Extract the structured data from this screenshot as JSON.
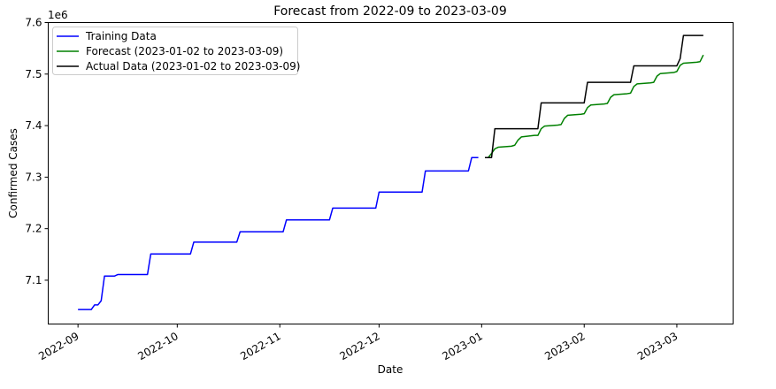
{
  "chart_data": {
    "type": "line",
    "title": "Forecast from 2022-09 to 2023-03-09",
    "xlabel": "Date",
    "ylabel": "Confirmed Cases",
    "y_offset_label": "1e6",
    "ylim": [
      7.015,
      7.6
    ],
    "xlim": [
      "2022-08-23",
      "2023-03-18"
    ],
    "yticks": [
      7.1,
      7.2,
      7.3,
      7.4,
      7.5,
      7.6
    ],
    "yticklabels": [
      "7.1",
      "7.2",
      "7.3",
      "7.4",
      "7.5",
      "7.6"
    ],
    "xticks": [
      "2022-09-01",
      "2022-10-01",
      "2022-11-01",
      "2022-12-01",
      "2023-01-01",
      "2023-02-01",
      "2023-03-01"
    ],
    "xticklabels": [
      "2022-09",
      "2022-10",
      "2022-11",
      "2022-12",
      "2023-01",
      "2023-02",
      "2023-03"
    ],
    "grid": false,
    "legend_position": "top-left",
    "series": [
      {
        "name": "Training Data",
        "color": "#0000ff",
        "x": [
          "2022-09-01",
          "2022-09-05",
          "2022-09-06",
          "2022-09-07",
          "2022-09-08",
          "2022-09-09",
          "2022-09-12",
          "2022-09-13",
          "2022-09-14",
          "2022-09-22",
          "2022-09-23",
          "2022-10-05",
          "2022-10-06",
          "2022-10-19",
          "2022-10-20",
          "2022-11-02",
          "2022-11-03",
          "2022-11-16",
          "2022-11-17",
          "2022-11-30",
          "2022-12-01",
          "2022-12-14",
          "2022-12-15",
          "2022-12-28",
          "2022-12-29",
          "2022-12-31"
        ],
        "y": [
          7.043,
          7.043,
          7.052,
          7.052,
          7.06,
          7.108,
          7.108,
          7.111,
          7.111,
          7.111,
          7.151,
          7.151,
          7.174,
          7.174,
          7.194,
          7.194,
          7.217,
          7.217,
          7.24,
          7.24,
          7.271,
          7.271,
          7.312,
          7.312,
          7.338,
          7.338
        ]
      },
      {
        "name": "Forecast (2023-01-02 to 2023-03-09)",
        "color": "#008000",
        "x": [
          "2023-01-02",
          "2023-01-03",
          "2023-01-04",
          "2023-01-05",
          "2023-01-06",
          "2023-01-10",
          "2023-01-11",
          "2023-01-12",
          "2023-01-13",
          "2023-01-17",
          "2023-01-18",
          "2023-01-19",
          "2023-01-20",
          "2023-01-24",
          "2023-01-25",
          "2023-01-26",
          "2023-01-27",
          "2023-01-31",
          "2023-02-01",
          "2023-02-02",
          "2023-02-03",
          "2023-02-07",
          "2023-02-08",
          "2023-02-09",
          "2023-02-10",
          "2023-02-14",
          "2023-02-15",
          "2023-02-16",
          "2023-02-17",
          "2023-02-21",
          "2023-02-22",
          "2023-02-23",
          "2023-02-24",
          "2023-02-28",
          "2023-03-01",
          "2023-03-02",
          "2023-03-03",
          "2023-03-07",
          "2023-03-08",
          "2023-03-09"
        ],
        "y": [
          7.338,
          7.338,
          7.346,
          7.355,
          7.358,
          7.36,
          7.362,
          7.372,
          7.378,
          7.381,
          7.381,
          7.394,
          7.399,
          7.401,
          7.402,
          7.414,
          7.42,
          7.422,
          7.423,
          7.435,
          7.44,
          7.442,
          7.443,
          7.455,
          7.46,
          7.462,
          7.463,
          7.476,
          7.481,
          7.483,
          7.484,
          7.496,
          7.501,
          7.503,
          7.505,
          7.517,
          7.521,
          7.523,
          7.524,
          7.537
        ]
      },
      {
        "name": "Actual Data (2023-01-02 to 2023-03-09)",
        "color": "#000000",
        "x": [
          "2023-01-02",
          "2023-01-04",
          "2023-01-05",
          "2023-01-18",
          "2023-01-19",
          "2023-02-01",
          "2023-02-02",
          "2023-02-15",
          "2023-02-16",
          "2023-03-01",
          "2023-03-02",
          "2023-03-03",
          "2023-03-09"
        ],
        "y": [
          7.338,
          7.338,
          7.394,
          7.394,
          7.444,
          7.444,
          7.484,
          7.484,
          7.516,
          7.516,
          7.53,
          7.575,
          7.575
        ]
      }
    ]
  }
}
